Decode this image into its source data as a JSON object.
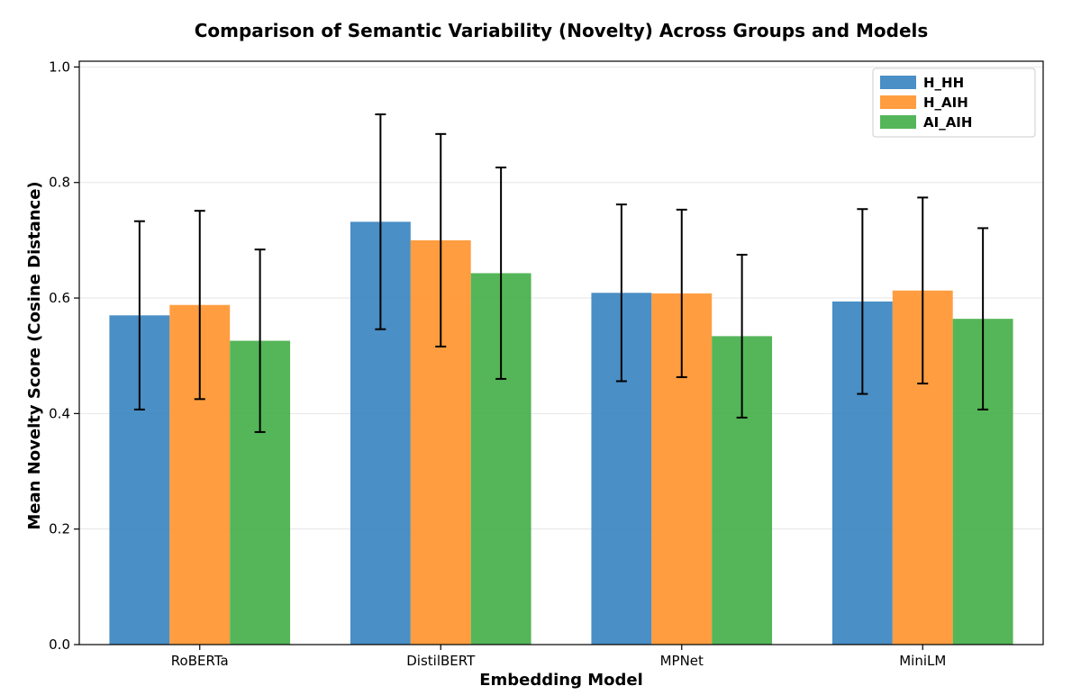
{
  "chart_data": {
    "type": "bar",
    "title": "Comparison of Semantic Variability (Novelty) Across Groups and Models",
    "xlabel": "Embedding Model",
    "ylabel": "Mean Novelty Score (Cosine Distance)",
    "categories": [
      "RoBERTa",
      "DistilBERT",
      "MPNet",
      "MiniLM"
    ],
    "ylim": [
      0,
      1.01
    ],
    "yticks": [
      "0.0",
      "0.2",
      "0.4",
      "0.6",
      "0.8",
      "1.0"
    ],
    "grid": "horizontal",
    "legend_position": "top-right",
    "series": [
      {
        "name": "H_HH",
        "color": "#3b86c0",
        "values": [
          0.57,
          0.732,
          0.609,
          0.594
        ],
        "errors": [
          0.163,
          0.186,
          0.153,
          0.16
        ]
      },
      {
        "name": "H_AIH",
        "color": "#ff9530",
        "values": [
          0.588,
          0.7,
          0.608,
          0.613
        ],
        "errors": [
          0.163,
          0.184,
          0.145,
          0.161
        ]
      },
      {
        "name": "AI_AIH",
        "color": "#45b04a",
        "values": [
          0.526,
          0.643,
          0.534,
          0.564
        ],
        "errors": [
          0.158,
          0.183,
          0.141,
          0.157
        ]
      }
    ]
  }
}
